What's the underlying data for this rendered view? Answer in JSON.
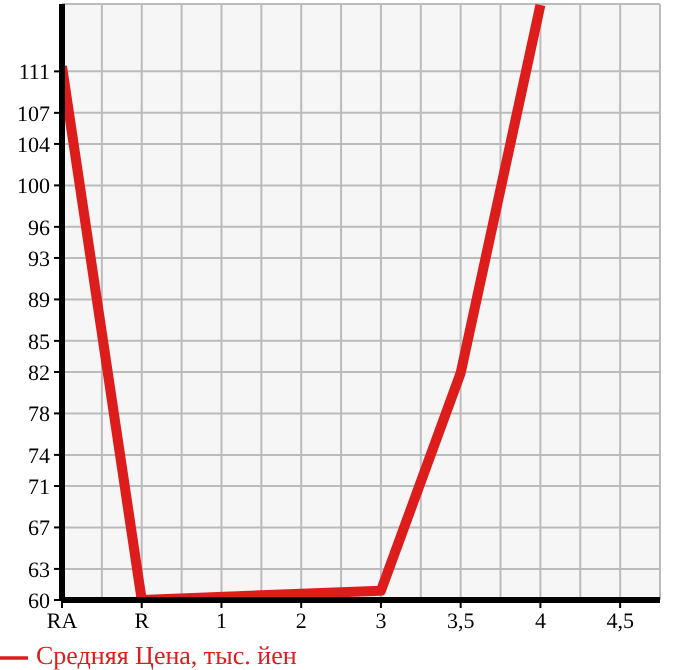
{
  "chart_data": {
    "type": "line",
    "categories": [
      "RA",
      "R",
      "1",
      "2",
      "3",
      "3,5",
      "4",
      "4,5"
    ],
    "series": [
      {
        "name": "Средняя Цена, тыс. йен",
        "color": "#dd1c1c",
        "values": [
          111.5,
          60,
          null,
          null,
          60.9,
          81.9,
          117.4,
          null
        ]
      }
    ],
    "ylim": [
      60,
      117.5
    ],
    "yticks": [
      60,
      63,
      67,
      71,
      74,
      78,
      82,
      85,
      89,
      93,
      96,
      100,
      104,
      107,
      111
    ],
    "grid": true,
    "legend": "bottom",
    "marker": "none",
    "line_style": "solid"
  }
}
